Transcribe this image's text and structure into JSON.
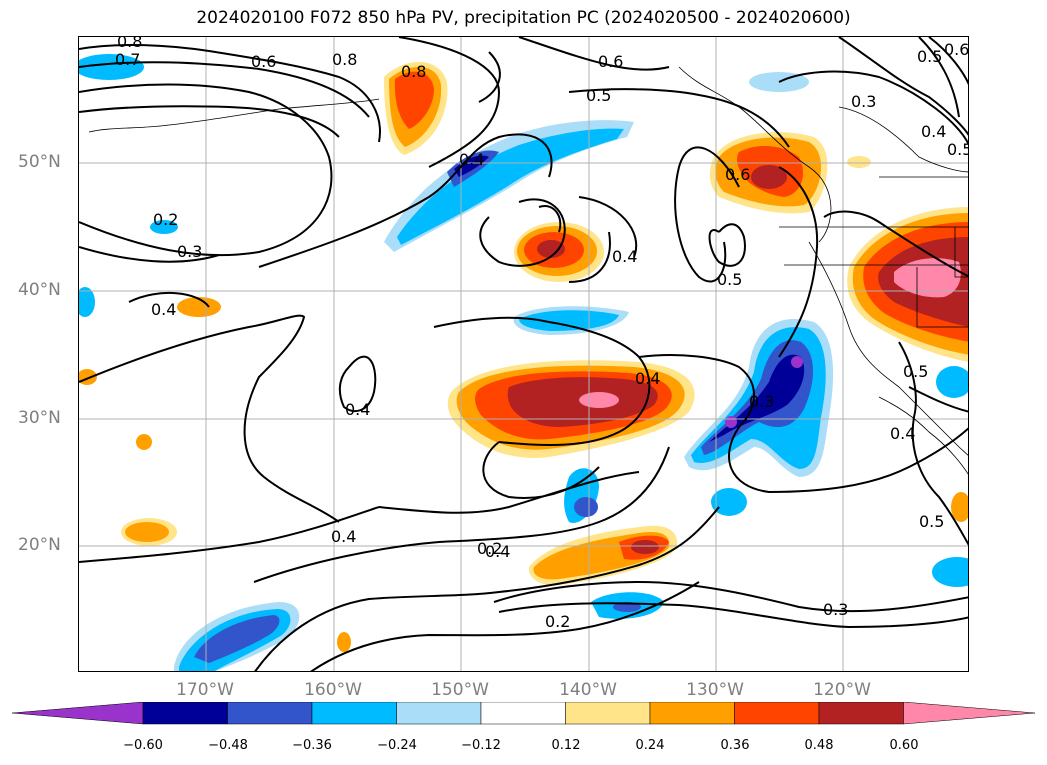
{
  "title": "2024020100 F072 850 hPa PV, precipitation PC (2024020500 - 2024020600)",
  "latitude_labels": [
    "50°N",
    "40°N",
    "30°N",
    "20°N"
  ],
  "longitude_labels": [
    "170°W",
    "160°W",
    "150°W",
    "140°W",
    "130°W",
    "120°W"
  ],
  "colorbar": {
    "ticks": [
      "−0.60",
      "−0.48",
      "−0.36",
      "−0.24",
      "−0.12",
      "0.12",
      "0.24",
      "0.36",
      "0.48",
      "0.60"
    ],
    "colors": [
      "#9933cc",
      "#000099",
      "#3355cc",
      "#00bbff",
      "#aaddf7",
      "#ffffff",
      "#ffe48a",
      "#ffa000",
      "#ff4400",
      "#b22222",
      "#ff88aa"
    ]
  },
  "contour_labels": [
    "0.8",
    "0.7",
    "0.6",
    "0.8",
    "0.8",
    "0.6",
    "0.5",
    "0.3",
    "0.5",
    "0.6",
    "0.4",
    "0.5",
    "0.4",
    "0.6",
    "0.2",
    "0.3",
    "0.4",
    "0.4",
    "0.5",
    "0.4",
    "0.4",
    "0.3",
    "0.5",
    "0.4",
    "0.4",
    "0.4",
    "0.2",
    "0.5",
    "0.3",
    "0.2"
  ],
  "colors": {
    "grid": "#b0b0b0",
    "contour": "#000000",
    "coast": "#000000"
  }
}
